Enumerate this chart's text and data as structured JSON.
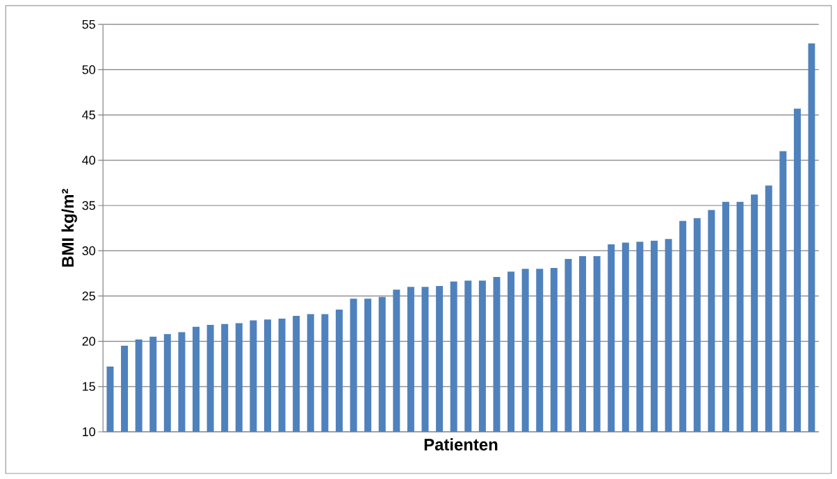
{
  "chart_data": {
    "type": "bar",
    "xlabel": "Patienten",
    "ylabel": "BMI kg/m²",
    "categories": [
      null,
      null,
      null,
      null,
      null,
      null,
      null,
      null,
      null,
      null,
      null,
      null,
      null,
      null,
      null,
      null,
      null,
      null,
      null,
      null,
      null,
      null,
      null,
      null,
      null,
      null,
      null,
      null,
      null,
      null,
      null,
      null,
      null,
      null,
      null,
      null,
      null,
      null,
      null,
      null,
      null,
      null,
      null,
      null,
      null,
      null,
      null,
      null,
      null,
      null
    ],
    "values": [
      17.2,
      19.5,
      20.2,
      20.5,
      20.8,
      21.0,
      21.6,
      21.8,
      21.9,
      22.0,
      22.3,
      22.4,
      22.5,
      22.8,
      23.0,
      23.0,
      23.5,
      24.7,
      24.7,
      24.9,
      25.7,
      26.0,
      26.0,
      26.1,
      26.6,
      26.7,
      26.7,
      27.1,
      27.7,
      28.0,
      28.0,
      28.1,
      29.1,
      29.4,
      29.4,
      30.7,
      30.9,
      31.0,
      31.1,
      31.3,
      33.3,
      33.6,
      34.5,
      35.4,
      35.4,
      36.2,
      37.2,
      41.0,
      45.7,
      52.9
    ],
    "color": "#4f81bd",
    "ylim": [
      10,
      55
    ],
    "yticks": [
      10,
      15,
      20,
      25,
      30,
      35,
      40,
      45,
      50,
      55
    ],
    "grid": "y"
  }
}
